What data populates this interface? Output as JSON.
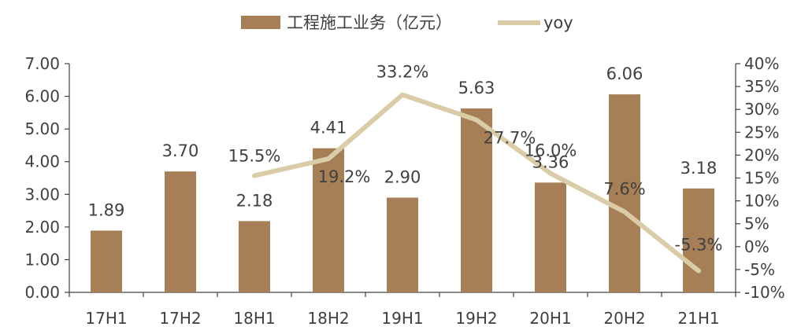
{
  "chart_data": {
    "type": "bar",
    "categories": [
      "17H1",
      "17H2",
      "18H1",
      "18H2",
      "19H1",
      "19H2",
      "20H1",
      "20H2",
      "21H1"
    ],
    "series": [
      {
        "name": "工程施工业务（亿元）",
        "type": "bar",
        "axis": "left",
        "values": [
          1.89,
          3.7,
          2.18,
          4.41,
          2.9,
          5.63,
          3.36,
          6.06,
          3.18
        ],
        "labels": [
          "1.89",
          "3.70",
          "2.18",
          "4.41",
          "2.90",
          "5.63",
          "3.36",
          "6.06",
          "3.18"
        ],
        "color": "#A67F56"
      },
      {
        "name": "yoy",
        "type": "line",
        "axis": "right",
        "values": [
          null,
          null,
          15.5,
          19.2,
          33.2,
          27.7,
          16.0,
          7.6,
          -5.3
        ],
        "labels": [
          "",
          "",
          "15.5%",
          "19.2%",
          "33.2%",
          "27.7%",
          "16.0%",
          "7.6%",
          "-5.3%"
        ],
        "color": "#D9CCA7"
      }
    ],
    "y_left": {
      "ylim": [
        0,
        7
      ],
      "ticks": [
        0,
        1,
        2,
        3,
        4,
        5,
        6,
        7
      ],
      "tick_labels": [
        "0.00",
        "1.00",
        "2.00",
        "3.00",
        "4.00",
        "5.00",
        "6.00",
        "7.00"
      ]
    },
    "y_right": {
      "ylim": [
        -10,
        40
      ],
      "ticks": [
        -10,
        -5,
        0,
        5,
        10,
        15,
        20,
        25,
        30,
        35,
        40
      ],
      "tick_labels": [
        "-10%",
        "-5%",
        "0%",
        "5%",
        "10%",
        "15%",
        "20%",
        "25%",
        "30%",
        "35%",
        "40%"
      ]
    },
    "legend_position": "top-center",
    "grid": false,
    "title": "",
    "xlabel": "",
    "ylabel": ""
  }
}
